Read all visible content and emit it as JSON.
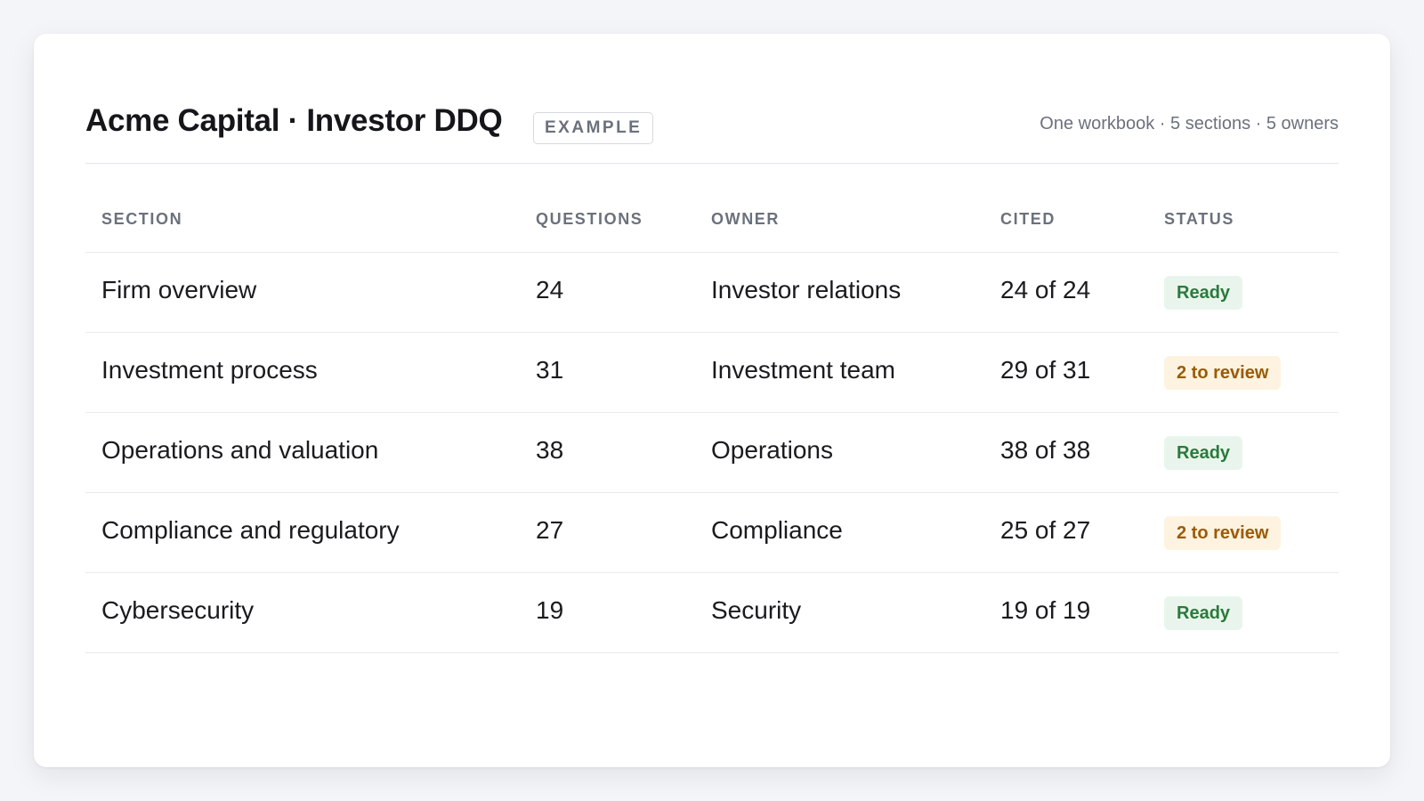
{
  "header": {
    "title": "Acme Capital · Investor DDQ",
    "badge": "EXAMPLE",
    "meta": "One workbook · 5 sections · 5 owners"
  },
  "table": {
    "columns": [
      "SECTION",
      "QUESTIONS",
      "OWNER",
      "CITED",
      "STATUS"
    ],
    "rows": [
      {
        "section": "Firm overview",
        "questions": "24",
        "owner": "Investor relations",
        "cited": "24 of 24",
        "status": "Ready",
        "status_type": "ready"
      },
      {
        "section": "Investment process",
        "questions": "31",
        "owner": "Investment team",
        "cited": "29 of 31",
        "status": "2 to review",
        "status_type": "review"
      },
      {
        "section": "Operations and valuation",
        "questions": "38",
        "owner": "Operations",
        "cited": "38 of 38",
        "status": "Ready",
        "status_type": "ready"
      },
      {
        "section": "Compliance and regulatory",
        "questions": "27",
        "owner": "Compliance",
        "cited": "25 of 27",
        "status": "2 to review",
        "status_type": "review"
      },
      {
        "section": "Cybersecurity",
        "questions": "19",
        "owner": "Security",
        "cited": "19 of 19",
        "status": "Ready",
        "status_type": "ready"
      }
    ]
  },
  "colors": {
    "ready_bg": "#e9f5ec",
    "ready_text": "#2a7a3c",
    "review_bg": "#fdf3e0",
    "review_text": "#9a5b07"
  }
}
